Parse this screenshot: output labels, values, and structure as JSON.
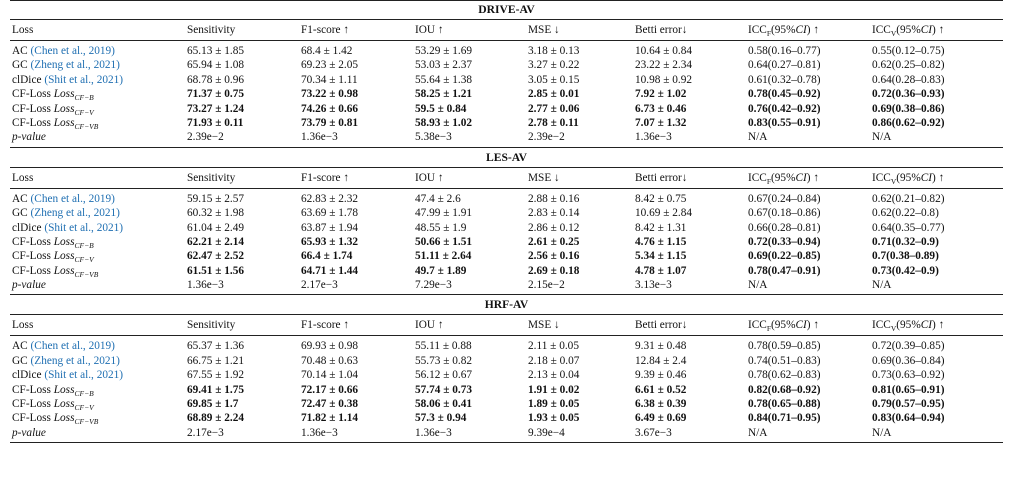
{
  "header": [
    "Loss",
    "Sensitivity",
    "F1-score ↑",
    "IOU ↑",
    "MSE ↓",
    "Betti error↓",
    "ICC_F(95%CI) ↑",
    "ICC_V(95%CI) ↑"
  ],
  "sections": [
    {
      "title": "DRIVE-AV",
      "rows": [
        {
          "loss": "AC",
          "cite": "(Chen et al., 2019)",
          "values": [
            "65.13 ± 1.85",
            "68.4 ± 1.42",
            "53.29 ± 1.69",
            "3.18 ± 0.13",
            "10.64 ± 0.84",
            "0.58(0.16–0.77)",
            "0.55(0.12–0.75)"
          ],
          "bold": false
        },
        {
          "loss": "GC",
          "cite": "(Zheng et al., 2021)",
          "values": [
            "65.94 ± 1.08",
            "69.23 ± 2.05",
            "53.03 ± 2.37",
            "3.27 ± 0.22",
            "23.22 ± 2.34",
            "0.64(0.27–0.81)",
            "0.62(0.25–0.82)"
          ],
          "bold": false
        },
        {
          "loss": "clDice",
          "cite": "(Shit et al., 2021)",
          "values": [
            "68.78 ± 0.96",
            "70.34 ± 1.11",
            "55.64 ± 1.38",
            "3.05 ± 0.15",
            "10.98 ± 0.92",
            "0.61(0.32–0.78)",
            "0.64(0.28–0.83)"
          ],
          "bold": false
        },
        {
          "loss": "CF-Loss",
          "cflabel": "Loss",
          "cfsub": "CF−B",
          "values": [
            "71.37 ± 0.75",
            "73.22 ± 0.98",
            "58.25 ± 1.21",
            "2.85 ± 0.01",
            "7.92 ± 1.02",
            "0.78(0.45–0.92)",
            "0.72(0.36–0.93)"
          ],
          "bold": true
        },
        {
          "loss": "CF-Loss",
          "cflabel": "Loss",
          "cfsub": "CF−V",
          "values": [
            "73.27 ± 1.24",
            "74.26 ± 0.66",
            "59.5 ± 0.84",
            "2.77 ± 0.06",
            "6.73 ± 0.46",
            "0.76(0.42–0.92)",
            "0.69(0.38–0.86)"
          ],
          "bold": true
        },
        {
          "loss": "CF-Loss",
          "cflabel": "Loss",
          "cfsub": "CF−VB",
          "values": [
            "71.93 ± 0.11",
            "73.79 ± 0.81",
            "58.93 ± 1.02",
            "2.78 ± 0.11",
            "7.07 ± 1.32",
            "0.83(0.55–0.91)",
            "0.86(0.62–0.92)"
          ],
          "bold": true
        },
        {
          "loss": "p-value",
          "values": [
            "2.39e−2",
            "1.36e−3",
            "5.38e−3",
            "2.39e−2",
            "1.36e−3",
            "N/A",
            "N/A"
          ],
          "bold": false,
          "pval": true
        }
      ]
    },
    {
      "title": "LES-AV",
      "rows": [
        {
          "loss": "AC",
          "cite": "(Chen et al., 2019)",
          "values": [
            "59.15 ± 2.57",
            "62.83 ± 2.32",
            "47.4 ± 2.6",
            "2.88 ± 0.16",
            "8.42 ± 0.75",
            "0.67(0.24–0.84)",
            "0.62(0.21–0.82)"
          ],
          "bold": false
        },
        {
          "loss": "GC",
          "cite": "(Zheng et al., 2021)",
          "values": [
            "60.32 ± 1.98",
            "63.69 ± 1.78",
            "47.99 ± 1.91",
            "2.83 ± 0.14",
            "10.69 ± 2.84",
            "0.67(0.18–0.86)",
            "0.62(0.22–0.8)"
          ],
          "bold": false
        },
        {
          "loss": "clDice",
          "cite": "(Shit et al., 2021)",
          "values": [
            "61.04 ± 2.49",
            "63.87 ± 1.94",
            "48.55 ± 1.9",
            "2.86 ± 0.12",
            "8.42 ± 1.31",
            "0.66(0.28–0.81)",
            "0.64(0.35–0.77)"
          ],
          "bold": false
        },
        {
          "loss": "CF-Loss",
          "cflabel": "Loss",
          "cfsub": "CF−B",
          "values": [
            "62.21 ± 2.14",
            "65.93 ± 1.32",
            "50.66 ± 1.51",
            "2.61 ± 0.25",
            "4.76 ± 1.15",
            "0.72(0.33–0.94)",
            "0.71(0.32–0.9)"
          ],
          "bold": true
        },
        {
          "loss": "CF-Loss",
          "cflabel": "Loss",
          "cfsub": "CF−V",
          "values": [
            "62.47 ± 2.52",
            "66.4 ± 1.74",
            "51.11 ± 2.64",
            "2.56 ± 0.16",
            "5.34 ± 1.15",
            "0.69(0.22–0.85)",
            "0.7(0.38–0.89)"
          ],
          "bold": true
        },
        {
          "loss": "CF-Loss",
          "cflabel": "Loss",
          "cfsub": "CF−VB",
          "values": [
            "61.51 ± 1.56",
            "64.71 ± 1.44",
            "49.7 ± 1.89",
            "2.69 ± 0.18",
            "4.78 ± 1.07",
            "0.78(0.47–0.91)",
            "0.73(0.42–0.9)"
          ],
          "bold": true
        },
        {
          "loss": "p-value",
          "values": [
            "1.36e−3",
            "2.17e−3",
            "7.29e−3",
            "2.15e−2",
            "3.13e−3",
            "N/A",
            "N/A"
          ],
          "bold": false,
          "pval": true
        }
      ]
    },
    {
      "title": "HRF-AV",
      "rows": [
        {
          "loss": "AC",
          "cite": "(Chen et al., 2019)",
          "values": [
            "65.37 ± 1.36",
            "69.93 ± 0.98",
            "55.11 ± 0.88",
            "2.11 ± 0.05",
            "9.31 ± 0.48",
            "0.78(0.59–0.85)",
            "0.72(0.39–0.85)"
          ],
          "bold": false
        },
        {
          "loss": "GC",
          "cite": "(Zheng et al., 2021)",
          "values": [
            "66.75 ± 1.21",
            "70.48 ± 0.63",
            "55.73 ± 0.82",
            "2.18 ± 0.07",
            "12.84 ± 2.4",
            "0.74(0.51–0.83)",
            "0.69(0.36–0.84)"
          ],
          "bold": false
        },
        {
          "loss": "clDice",
          "cite": "(Shit et al., 2021)",
          "values": [
            "67.55 ± 1.92",
            "70.14 ± 1.04",
            "56.12 ± 0.67",
            "2.13 ± 0.04",
            "9.39 ± 0.46",
            "0.78(0.62–0.83)",
            "0.73(0.63–0.92)"
          ],
          "bold": false
        },
        {
          "loss": "CF-Loss",
          "cflabel": "Loss",
          "cfsub": "CF−B",
          "values": [
            "69.41 ± 1.75",
            "72.17 ± 0.66",
            "57.74 ± 0.73",
            "1.91 ± 0.02",
            "6.61 ± 0.52",
            "0.82(0.68–0.92)",
            "0.81(0.65–0.91)"
          ],
          "bold": true
        },
        {
          "loss": "CF-Loss",
          "cflabel": "Loss",
          "cfsub": "CF−V",
          "values": [
            "69.85 ± 1.7",
            "72.47 ± 0.38",
            "58.06 ± 0.41",
            "1.89 ± 0.05",
            "6.38 ± 0.39",
            "0.78(0.65–0.88)",
            "0.79(0.57–0.95)"
          ],
          "bold": true
        },
        {
          "loss": "CF-Loss",
          "cflabel": "Loss",
          "cfsub": "CF−VB",
          "values": [
            "68.89 ± 2.24",
            "71.82 ± 1.14",
            "57.3 ± 0.94",
            "1.93 ± 0.05",
            "6.49 ± 0.69",
            "0.84(0.71–0.95)",
            "0.83(0.64–0.94)"
          ],
          "bold": true
        },
        {
          "loss": "p-value",
          "values": [
            "2.17e−3",
            "1.36e−3",
            "1.36e−3",
            "9.39e−4",
            "3.67e−3",
            "N/A",
            "N/A"
          ],
          "bold": false,
          "pval": true
        }
      ]
    }
  ]
}
